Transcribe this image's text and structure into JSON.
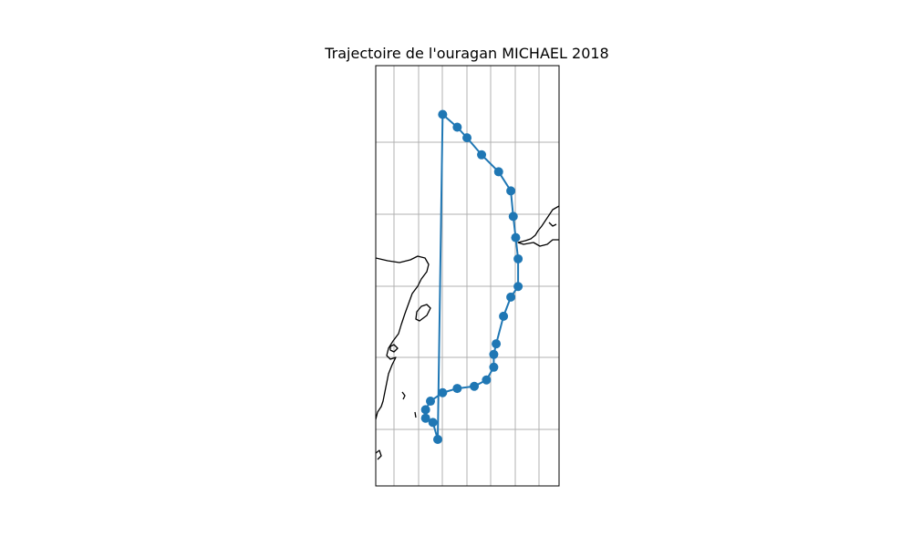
{
  "title": "Trajectoire de l'ouragan MICHAEL 2018",
  "map": {
    "grid": true,
    "coastlines": true,
    "track_color": "#1f77b4",
    "coast_color": "#000000",
    "grid_color": "#b0b0b0"
  },
  "chart_data": {
    "type": "scatter",
    "title": "Trajectoire de l'ouragan MICHAEL 2018",
    "series": [
      {
        "points": [
          {
            "x": 0.0,
            "y": 0.0
          },
          {
            "x": -0.2,
            "y": 0.8
          },
          {
            "x": -0.5,
            "y": 1.0
          },
          {
            "x": -0.5,
            "y": 1.4
          },
          {
            "x": -0.3,
            "y": 1.8
          },
          {
            "x": 0.2,
            "y": 2.2
          },
          {
            "x": 0.8,
            "y": 2.4
          },
          {
            "x": 1.5,
            "y": 2.5
          },
          {
            "x": 2.0,
            "y": 2.8
          },
          {
            "x": 2.3,
            "y": 3.4
          },
          {
            "x": 2.3,
            "y": 4.0
          },
          {
            "x": 2.4,
            "y": 4.5
          },
          {
            "x": 2.7,
            "y": 5.8
          },
          {
            "x": 3.0,
            "y": 6.7
          },
          {
            "x": 3.3,
            "y": 7.2
          },
          {
            "x": 3.3,
            "y": 8.5
          },
          {
            "x": 3.2,
            "y": 9.5
          },
          {
            "x": 3.1,
            "y": 10.5
          },
          {
            "x": 3.0,
            "y": 11.7
          },
          {
            "x": 2.5,
            "y": 12.6
          },
          {
            "x": 1.8,
            "y": 13.4
          },
          {
            "x": 1.2,
            "y": 14.2
          },
          {
            "x": 0.8,
            "y": 14.7
          },
          {
            "x": 0.2,
            "y": 15.3
          },
          {
            "x": 0.0,
            "y": 0.0
          }
        ]
      }
    ],
    "grid": true
  }
}
